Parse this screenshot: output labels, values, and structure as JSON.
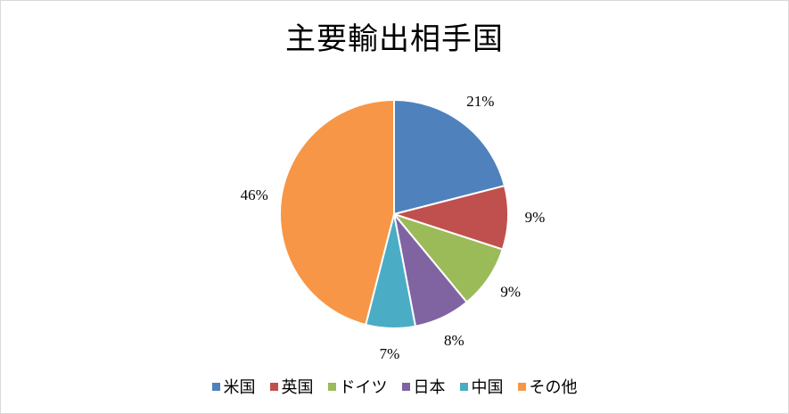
{
  "chart_data": {
    "type": "pie",
    "title": "主要輸出相手国",
    "categories": [
      "米国",
      "英国",
      "ドイツ",
      "日本",
      "中国",
      "その他"
    ],
    "values": [
      21,
      9,
      9,
      8,
      7,
      46
    ],
    "data_labels": [
      "21%",
      "9%",
      "9%",
      "8%",
      "7%",
      "46%"
    ],
    "colors": [
      "#4F81BD",
      "#C0504D",
      "#9BBB59",
      "#8064A2",
      "#4BACC6",
      "#F79646"
    ],
    "legend_position": "bottom",
    "start_angle": "12 o'clock",
    "direction": "clockwise"
  }
}
